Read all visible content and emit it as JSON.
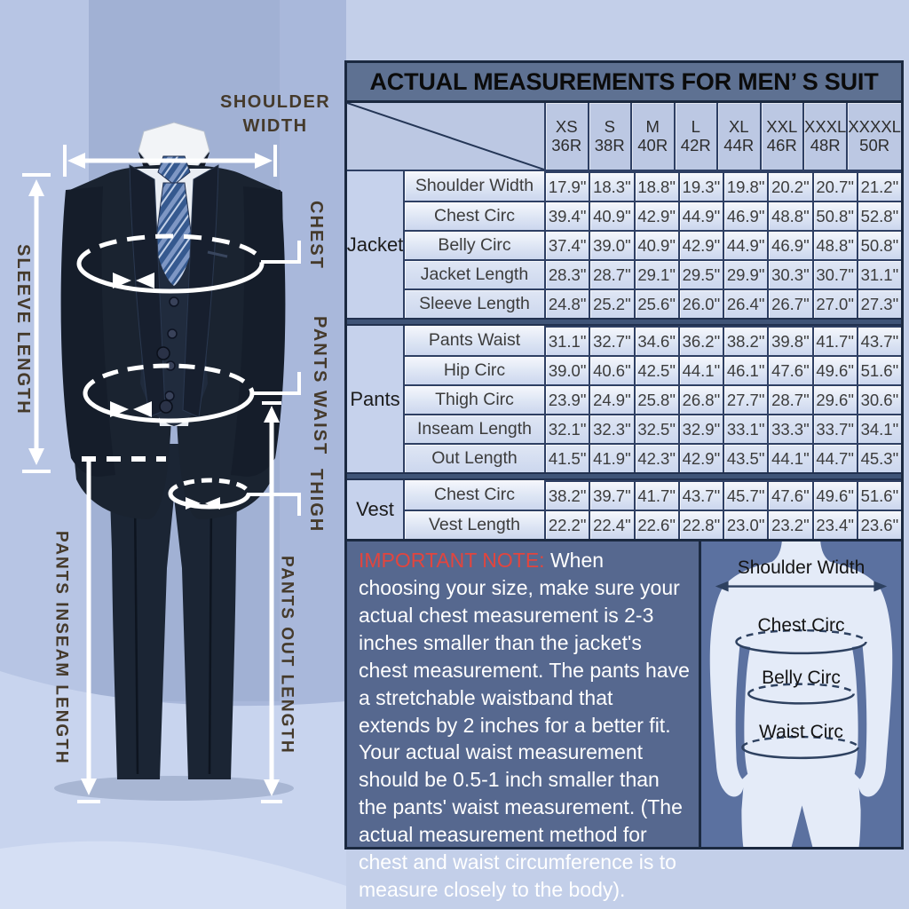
{
  "table": {
    "title": "ACTUAL MEASUREMENTS FOR MEN’ S SUIT",
    "sizes": [
      {
        "name": "XS",
        "num": "36R"
      },
      {
        "name": "S",
        "num": "38R"
      },
      {
        "name": "M",
        "num": "40R"
      },
      {
        "name": "L",
        "num": "42R"
      },
      {
        "name": "XL",
        "num": "44R"
      },
      {
        "name": "XXL",
        "num": "46R"
      },
      {
        "name": "XXXL",
        "num": "48R"
      },
      {
        "name": "XXXXL",
        "num": "50R"
      }
    ],
    "groups": [
      {
        "name": "Jacket",
        "rows": [
          {
            "label": "Shoulder Width",
            "values": [
              "17.9\"",
              "18.3\"",
              "18.8\"",
              "19.3\"",
              "19.8\"",
              "20.2\"",
              "20.7\"",
              "21.2\""
            ]
          },
          {
            "label": "Chest Circ",
            "values": [
              "39.4\"",
              "40.9\"",
              "42.9\"",
              "44.9\"",
              "46.9\"",
              "48.8\"",
              "50.8\"",
              "52.8\""
            ]
          },
          {
            "label": "Belly Circ",
            "values": [
              "37.4\"",
              "39.0\"",
              "40.9\"",
              "42.9\"",
              "44.9\"",
              "46.9\"",
              "48.8\"",
              "50.8\""
            ]
          },
          {
            "label": "Jacket Length",
            "values": [
              "28.3\"",
              "28.7\"",
              "29.1\"",
              "29.5\"",
              "29.9\"",
              "30.3\"",
              "30.7\"",
              "31.1\""
            ]
          },
          {
            "label": "Sleeve Length",
            "values": [
              "24.8\"",
              "25.2\"",
              "25.6\"",
              "26.0\"",
              "26.4\"",
              "26.7\"",
              "27.0\"",
              "27.3\""
            ]
          }
        ]
      },
      {
        "name": "Pants",
        "rows": [
          {
            "label": "Pants Waist",
            "values": [
              "31.1\"",
              "32.7\"",
              "34.6\"",
              "36.2\"",
              "38.2\"",
              "39.8\"",
              "41.7\"",
              "43.7\""
            ]
          },
          {
            "label": "Hip Circ",
            "values": [
              "39.0\"",
              "40.6\"",
              "42.5\"",
              "44.1\"",
              "46.1\"",
              "47.6\"",
              "49.6\"",
              "51.6\""
            ]
          },
          {
            "label": "Thigh Circ",
            "values": [
              "23.9\"",
              "24.9\"",
              "25.8\"",
              "26.8\"",
              "27.7\"",
              "28.7\"",
              "29.6\"",
              "30.6\""
            ]
          },
          {
            "label": "Inseam Length",
            "values": [
              "32.1\"",
              "32.3\"",
              "32.5\"",
              "32.9\"",
              "33.1\"",
              "33.3\"",
              "33.7\"",
              "34.1\""
            ]
          },
          {
            "label": "Out Length",
            "values": [
              "41.5\"",
              "41.9\"",
              "42.3\"",
              "42.9\"",
              "43.5\"",
              "44.1\"",
              "44.7\"",
              "45.3\""
            ]
          }
        ]
      },
      {
        "name": "Vest",
        "rows": [
          {
            "label": "Chest Circ",
            "values": [
              "38.2\"",
              "39.7\"",
              "41.7\"",
              "43.7\"",
              "45.7\"",
              "47.6\"",
              "49.6\"",
              "51.6\""
            ]
          },
          {
            "label": "Vest Length",
            "values": [
              "22.2\"",
              "22.4\"",
              "22.6\"",
              "22.8\"",
              "23.0\"",
              "23.2\"",
              "23.4\"",
              "23.6\""
            ]
          }
        ]
      }
    ]
  },
  "note": {
    "heading": "IMPORTANT NOTE:",
    "body": " When choosing your size, make sure your actual chest measurement is 2-3 inches smaller than the jacket's chest measurement. The pants have a stretchable waistband that extends by 2 inches for a better fit. Your actual waist measurement should be 0.5-1 inch smaller than the pants' waist measurement. (The actual measurement method for chest and waist circumference is to measure closely to the body)."
  },
  "torso": {
    "labels": [
      "Shoulder Width",
      "Chest Circ",
      "Belly Circ",
      "Waist Circ"
    ]
  },
  "figure": {
    "shoulder_width": "SHOULDER WIDTH",
    "sleeve_length": "SLEEVE LENGTH",
    "chest": "CHEST",
    "pants_waist": "PANTS WAIST",
    "thigh": "THIGH",
    "pants_inseam_length": "PANTS INSEAM LENGTH",
    "pants_out_length": "PANTS OUT LENGTH"
  },
  "colors": {
    "note_heading_red": "#e2453e",
    "panel_border_navy": "#1b2940",
    "title_band_slate": "#5e7192",
    "wall_periwinkle": "#a9b8db",
    "floor_light": "#c8d4ee",
    "suit_navy": "#1a2330",
    "annotation_white": "#ffffff",
    "figure_label_brown": "#453a2b"
  }
}
